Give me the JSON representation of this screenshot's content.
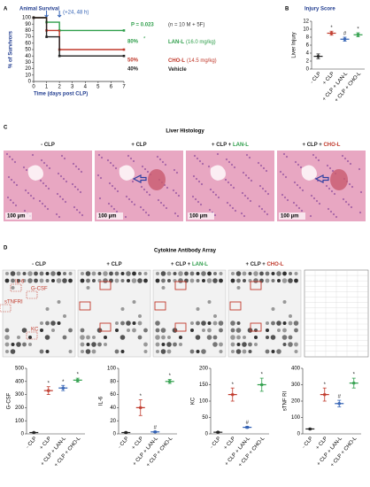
{
  "panels": [
    "A",
    "B",
    "C",
    "D"
  ],
  "chart_data": [
    {
      "type": "survival",
      "title": "Animal Survival",
      "xlabel": "Time (days post CLP)",
      "ylabel": "% of Survivors",
      "x": [
        0,
        1,
        2,
        7
      ],
      "xlim": [
        0,
        7
      ],
      "xticks": [
        0,
        1,
        2,
        3,
        4,
        5,
        6,
        7
      ],
      "ylim": [
        0,
        100
      ],
      "yticks": [
        0,
        10,
        20,
        30,
        40,
        50,
        60,
        70,
        80,
        90,
        100
      ],
      "arrow_days": [
        1,
        2
      ],
      "arrow_label": "(+24, 48 h)",
      "p_label": "P = 0.023",
      "n_label": "(n = 10 M + 5F)",
      "star": "*",
      "series": [
        {
          "name": "LAN-L",
          "dose": "(16.0 mg/kg)",
          "color": "#2e9e4a",
          "values": [
            100,
            93,
            80,
            80
          ],
          "end_label": "80%"
        },
        {
          "name": "CHO-L",
          "dose": "(14.5 mg/kg)",
          "color": "#c0392b",
          "values": [
            100,
            80,
            50,
            50
          ],
          "end_label": "50%"
        },
        {
          "name": "Vehicle",
          "color": "#222222",
          "values": [
            100,
            70,
            40,
            40
          ],
          "end_label": "40%"
        }
      ]
    },
    {
      "type": "dot",
      "title": "Injury Score",
      "ylabel": "Liver Injury",
      "categories": [
        "- CLP",
        "+ CLP",
        "+ CLP + LAN-L",
        "+ CLP + CHO-L"
      ],
      "colors": [
        "#222222",
        "#c0392b",
        "#2f5fb3",
        "#2e9e4a"
      ],
      "values": [
        3.2,
        9.0,
        7.5,
        8.6
      ],
      "errors": [
        0.6,
        0.5,
        0.5,
        0.5
      ],
      "sig": [
        null,
        "*",
        "#",
        "*"
      ],
      "ylim": [
        0,
        12
      ],
      "yticks": [
        0,
        2,
        4,
        6,
        8,
        10,
        12
      ]
    },
    {
      "type": "dot",
      "ylabel": "G-CSF",
      "categories": [
        "- CLP",
        "+ CLP",
        "+ CLP + LAN-L",
        "+ CLP + CHO-L"
      ],
      "colors": [
        "#222222",
        "#c0392b",
        "#2f5fb3",
        "#2e9e4a"
      ],
      "values": [
        10,
        330,
        350,
        410
      ],
      "errors": [
        3,
        30,
        20,
        15
      ],
      "sig": [
        null,
        "*",
        "*",
        "*"
      ],
      "ylim": [
        0,
        500
      ],
      "yticks": [
        0,
        100,
        200,
        300,
        400,
        500
      ]
    },
    {
      "type": "dot",
      "ylabel": "IL-6",
      "categories": [
        "- CLP",
        "+ CLP",
        "+ CLP + LAN-L",
        "+ CLP + CHO-L"
      ],
      "colors": [
        "#222222",
        "#c0392b",
        "#2f5fb3",
        "#2e9e4a"
      ],
      "values": [
        2,
        40,
        3,
        80
      ],
      "errors": [
        1,
        12,
        1,
        3
      ],
      "sig": [
        null,
        "*",
        "#",
        "*"
      ],
      "ylim": [
        0,
        100
      ],
      "yticks": [
        0,
        20,
        40,
        60,
        80,
        100
      ]
    },
    {
      "type": "dot",
      "ylabel": "KC",
      "categories": [
        "- CLP",
        "+ CLP",
        "+ CLP + LAN-L",
        "+ CLP + CHO-L"
      ],
      "colors": [
        "#222222",
        "#c0392b",
        "#2f5fb3",
        "#2e9e4a"
      ],
      "values": [
        5,
        120,
        20,
        150
      ],
      "errors": [
        2,
        20,
        3,
        20
      ],
      "sig": [
        null,
        "*",
        "#",
        "*"
      ],
      "ylim": [
        0,
        200
      ],
      "yticks": [
        0,
        50,
        100,
        150,
        200
      ]
    },
    {
      "type": "dot",
      "ylabel": "sTNF RI",
      "categories": [
        "- CLP",
        "+ CLP",
        "+ CLP + LAN-L",
        "+ CLP + CHO-L"
      ],
      "colors": [
        "#222222",
        "#c0392b",
        "#2f5fb3",
        "#2e9e4a"
      ],
      "values": [
        30,
        240,
        185,
        310
      ],
      "errors": [
        3,
        40,
        20,
        30
      ],
      "sig": [
        null,
        "*",
        "#",
        "*"
      ],
      "ylim": [
        0,
        400
      ],
      "yticks": [
        0,
        100,
        200,
        300,
        400
      ]
    }
  ],
  "groups": [
    [
      "- CLP"
    ],
    [
      "+ CLP"
    ],
    [
      "+ CLP + ",
      "LAN-L"
    ],
    [
      "+ CLP + ",
      "CHO-L"
    ]
  ],
  "drug_colors": [
    "#2e9e4a",
    "#c0392b"
  ],
  "histology": {
    "title": "Liver Histology",
    "scale": "100 µm"
  },
  "array": {
    "title": "Cytokine Antibody Array",
    "spots": [
      "IL-6",
      "G-CSF",
      "sTNFRI",
      "KC"
    ]
  }
}
